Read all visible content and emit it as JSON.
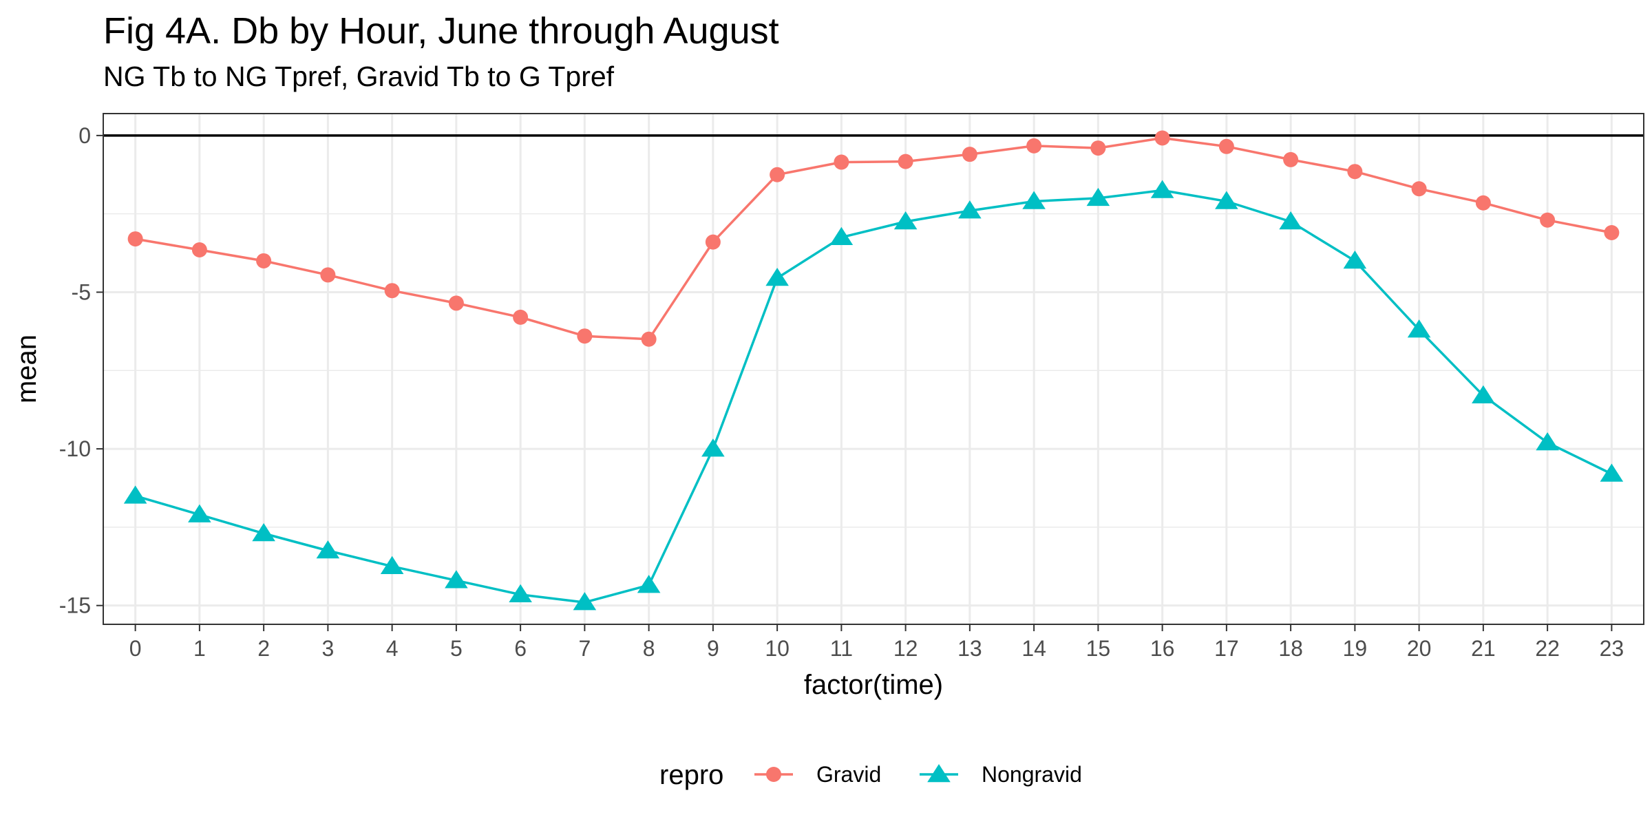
{
  "title": "Fig 4A. Db by Hour, June through August",
  "subtitle": "NG Tb to NG Tpref, Gravid Tb to G Tpref",
  "chart_data": {
    "type": "line",
    "xlabel": "factor(time)",
    "ylabel": "mean",
    "categories": [
      "0",
      "1",
      "2",
      "3",
      "4",
      "5",
      "6",
      "7",
      "8",
      "9",
      "10",
      "11",
      "12",
      "13",
      "14",
      "15",
      "16",
      "17",
      "18",
      "19",
      "20",
      "21",
      "22",
      "23"
    ],
    "ylim": [
      -15.6,
      0.7
    ],
    "yticks": [
      0,
      -5,
      -10,
      -15
    ],
    "ytick_labels": [
      "0",
      "-5",
      "-10",
      "-15"
    ],
    "hline": 0,
    "grid": true,
    "legend": {
      "title": "repro",
      "placement": "bottom"
    },
    "series": [
      {
        "name": "Gravid",
        "color": "#F8766D",
        "marker": "circle",
        "values": [
          -3.3,
          -3.65,
          -4.0,
          -4.45,
          -4.95,
          -5.35,
          -5.8,
          -6.4,
          -6.5,
          -3.4,
          -1.25,
          -0.85,
          -0.83,
          -0.6,
          -0.33,
          -0.4,
          -0.08,
          -0.35,
          -0.77,
          -1.15,
          -1.7,
          -2.15,
          -2.7,
          -3.1
        ]
      },
      {
        "name": "Nongravid",
        "color": "#00BFC4",
        "marker": "triangle",
        "values": [
          -11.5,
          -12.1,
          -12.7,
          -13.25,
          -13.75,
          -14.2,
          -14.65,
          -14.9,
          -14.35,
          -10.0,
          -4.55,
          -3.25,
          -2.75,
          -2.4,
          -2.1,
          -2.0,
          -1.75,
          -2.1,
          -2.75,
          -4.0,
          -6.2,
          -8.3,
          -9.8,
          -10.8
        ]
      }
    ]
  }
}
